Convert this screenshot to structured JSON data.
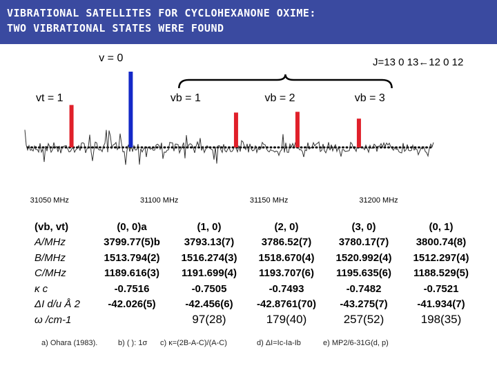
{
  "header": {
    "line1": "VIBRATIONAL SATELLITES FOR CYCLOHEXANONE OXIME:",
    "line2": "TWO VIBRATIONAL STATES WERE FOUND"
  },
  "chart_data": {
    "type": "line",
    "x_unit": "MHz",
    "xlim": [
      31040,
      31225
    ],
    "x_ticks": [
      {
        "value": 31050,
        "label": "31050 MHz"
      },
      {
        "value": 31100,
        "label": "31100 MHz"
      },
      {
        "value": 31150,
        "label": "31150 MHz"
      },
      {
        "value": 31200,
        "label": "31200 MHz"
      }
    ],
    "transition_label": "J=13 0 13←12 0 12",
    "state_labels": [
      {
        "text": "v = 0",
        "x": 31078
      },
      {
        "text": "vt = 1",
        "x": 31050
      },
      {
        "text": "vb = 1",
        "x": 31112
      },
      {
        "text": "vb = 2",
        "x": 31155
      },
      {
        "text": "vb = 3",
        "x": 31196
      }
    ],
    "stick_lines": [
      {
        "x": 31060,
        "height": 0.56,
        "color": "#e0202a"
      },
      {
        "x": 31087,
        "height": 1.0,
        "color": "#1428c8"
      },
      {
        "x": 31135,
        "height": 0.46,
        "color": "#e0202a"
      },
      {
        "x": 31163,
        "height": 0.47,
        "color": "#e0202a"
      },
      {
        "x": 31191,
        "height": 0.38,
        "color": "#e0202a"
      }
    ]
  },
  "table": {
    "header_row_label": "(vb, vt)",
    "columns": [
      "(0, 0)a",
      "(1, 0)",
      "(2, 0)",
      "(3, 0)",
      "(0, 1)"
    ],
    "rows": [
      {
        "label": "A/MHz",
        "values": [
          "3799.77(5)b",
          "3793.13(7)",
          "3786.52(7)",
          "3780.17(7)",
          "3800.74(8)"
        ]
      },
      {
        "label": "B/MHz",
        "values": [
          "1513.794(2)",
          "1516.274(3)",
          "1518.670(4)",
          "1520.992(4)",
          "1512.297(4)"
        ]
      },
      {
        "label": "C/MHz",
        "values": [
          "1189.616(3)",
          "1191.699(4)",
          "1193.707(6)",
          "1195.635(6)",
          "1188.529(5)"
        ]
      },
      {
        "label": "κ c",
        "values": [
          "-0.7516",
          "-0.7505",
          "-0.7493",
          "-0.7482",
          "-0.7521"
        ]
      },
      {
        "label": "ΔI d/u Å 2",
        "values": [
          "-42.026(5)",
          "-42.456(6)",
          "-42.8761(70)",
          "-43.275(7)",
          "-41.934(7)"
        ]
      },
      {
        "label": "ω /cm-1",
        "values": [
          "",
          "97(28)",
          "179(40)",
          "257(52)",
          "198(35)"
        ]
      }
    ]
  },
  "footnotes": {
    "a": "a) Ohara (1983).",
    "b": "b) ( ): 1σ",
    "c": "c) κ=(2B-A-C)/(A-C)",
    "d": "d) ΔI=Ic-Ia-Ib",
    "e": "e) MP2/6-31G(d, p)"
  }
}
